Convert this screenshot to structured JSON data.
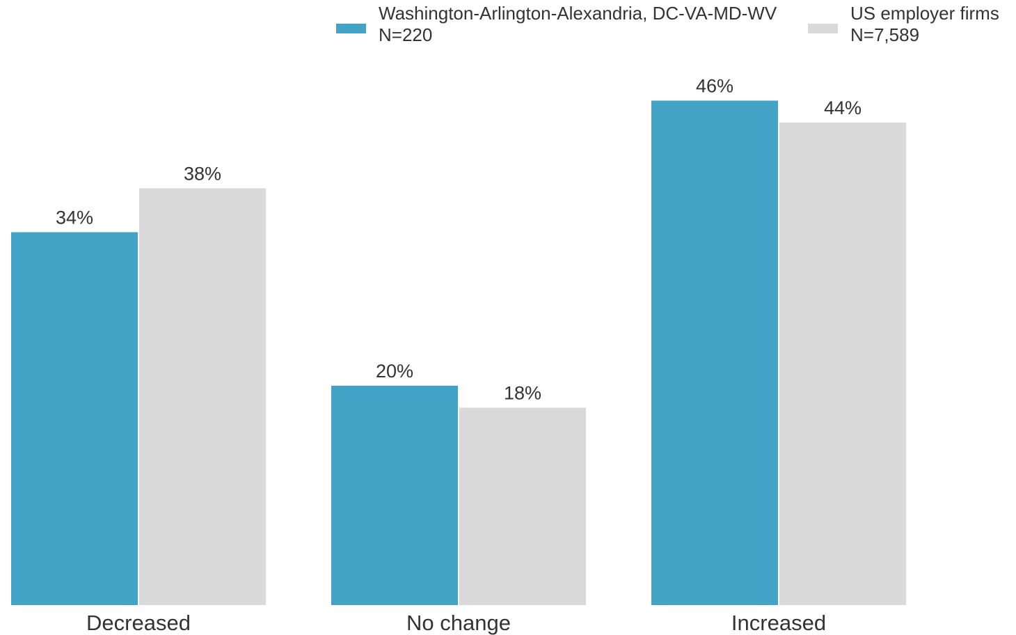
{
  "chart_data": {
    "type": "bar",
    "categories": [
      "Decreased",
      "No change",
      "Increased"
    ],
    "series": [
      {
        "name": "Washington-Arlington-Alexandria, DC-VA-MD-WV",
        "sample": "N=220",
        "color": "#42a3c7",
        "values": [
          34,
          20,
          46
        ],
        "labels": [
          "34%",
          "20%",
          "46%"
        ]
      },
      {
        "name": "US employer firms",
        "sample": "N=7,589",
        "color": "#d9d9d9",
        "values": [
          38,
          18,
          44
        ],
        "labels": [
          "38%",
          "18%",
          "44%"
        ]
      }
    ],
    "title": "",
    "xlabel": "",
    "ylabel": "",
    "ylim": [
      0,
      50
    ],
    "grid": false,
    "legend_position": "top-right"
  }
}
